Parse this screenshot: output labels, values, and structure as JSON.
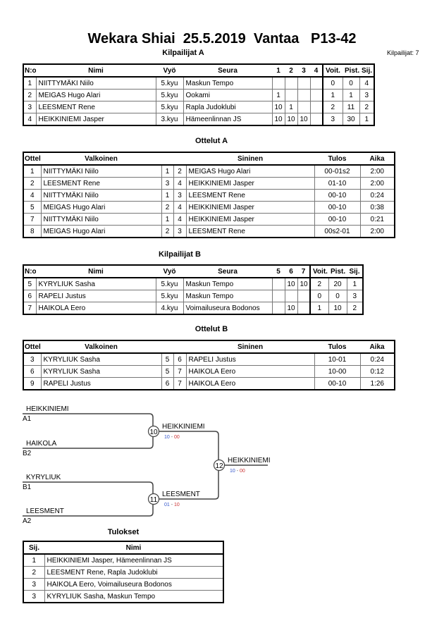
{
  "title": "Wekara Shiai  25.5.2019  Vantaa   P13-42",
  "competitor_count": "Kilpailijat: 7",
  "pool_a": {
    "title": "Kilpailijat A",
    "headers": [
      "N:o",
      "Nimi",
      "Vyö",
      "Seura",
      "1",
      "2",
      "3",
      "4",
      "Voit.",
      "Pist.",
      "Sij."
    ],
    "rows": [
      [
        "1",
        "NIITTYMÄKI Niilo",
        "5.kyu",
        "Maskun Tempo",
        "",
        "",
        "",
        "",
        "0",
        "0",
        "4"
      ],
      [
        "2",
        "MEIGAS Hugo Alari",
        "5.kyu",
        "Ookami",
        "1",
        "",
        "",
        "",
        "1",
        "1",
        "3"
      ],
      [
        "3",
        "LEESMENT Rene",
        "5.kyu",
        "Rapla Judoklubi",
        "10",
        "1",
        "",
        "",
        "2",
        "11",
        "2"
      ],
      [
        "4",
        "HEIKKINIEMI Jasper",
        "3.kyu",
        "Hämeenlinnan JS",
        "10",
        "10",
        "10",
        "",
        "3",
        "30",
        "1"
      ]
    ]
  },
  "matches_a": {
    "title": "Ottelut A",
    "headers": [
      "Ottelu",
      "Valkoinen",
      "",
      "",
      "Sininen",
      "Tulos",
      "Aika"
    ],
    "rows": [
      [
        "1",
        "NIITTYMÄKI Niilo",
        "1",
        "2",
        "MEIGAS Hugo Alari",
        "00-01s2",
        "2:00"
      ],
      [
        "2",
        "LEESMENT Rene",
        "3",
        "4",
        "HEIKKINIEMI Jasper",
        "01-10",
        "2:00"
      ],
      [
        "4",
        "NIITTYMÄKI Niilo",
        "1",
        "3",
        "LEESMENT Rene",
        "00-10",
        "0:24"
      ],
      [
        "5",
        "MEIGAS Hugo Alari",
        "2",
        "4",
        "HEIKKINIEMI Jasper",
        "00-10",
        "0:38"
      ],
      [
        "7",
        "NIITTYMÄKI Niilo",
        "1",
        "4",
        "HEIKKINIEMI Jasper",
        "00-10",
        "0:21"
      ],
      [
        "8",
        "MEIGAS Hugo Alari",
        "2",
        "3",
        "LEESMENT Rene",
        "00s2-01",
        "2:00"
      ]
    ]
  },
  "pool_b": {
    "title": "Kilpailijat B",
    "headers": [
      "N:o",
      "Nimi",
      "Vyö",
      "Seura",
      "5",
      "6",
      "7",
      "Voit.",
      "Pist.",
      "Sij."
    ],
    "rows": [
      [
        "5",
        "KYRYLIUK Sasha",
        "5.kyu",
        "Maskun Tempo",
        "",
        "10",
        "10",
        "2",
        "20",
        "1"
      ],
      [
        "6",
        "RAPELI Justus",
        "5.kyu",
        "Maskun Tempo",
        "",
        "",
        "",
        "0",
        "0",
        "3"
      ],
      [
        "7",
        "HAIKOLA Eero",
        "4.kyu",
        "Voimailuseura Bodonos",
        "",
        "10",
        "",
        "1",
        "10",
        "2"
      ]
    ]
  },
  "matches_b": {
    "title": "Ottelut B",
    "headers": [
      "Ottelu",
      "Valkoinen",
      "",
      "",
      "Sininen",
      "Tulos",
      "Aika"
    ],
    "rows": [
      [
        "3",
        "KYRYLIUK Sasha",
        "5",
        "6",
        "RAPELI Justus",
        "10-01",
        "0:24"
      ],
      [
        "6",
        "KYRYLIUK Sasha",
        "5",
        "7",
        "HAIKOLA Eero",
        "10-00",
        "0:12"
      ],
      [
        "9",
        "RAPELI Justus",
        "6",
        "7",
        "HAIKOLA Eero",
        "00-10",
        "1:26"
      ]
    ]
  },
  "bracket": {
    "entrants": [
      {
        "name": "HEIKKINIEMI",
        "seed": "A1"
      },
      {
        "name": "HAIKOLA",
        "seed": "B2"
      },
      {
        "name": "KYRYLIUK",
        "seed": "B1"
      },
      {
        "name": "LEESMENT",
        "seed": "A2"
      }
    ],
    "matches": [
      {
        "no": "10",
        "winner": "HEIKKINIEMI",
        "score_w": "10",
        "score_b": "00"
      },
      {
        "no": "11",
        "winner": "LEESMENT",
        "score_w": "01",
        "score_b": "10"
      },
      {
        "no": "12",
        "winner": "HEIKKINIEMI",
        "score_w": "10",
        "score_b": "00"
      }
    ],
    "colors": {
      "white_score": "#3355cc",
      "blue_score": "#cc3333"
    }
  },
  "results": {
    "title": "Tulokset",
    "headers": [
      "Sij.",
      "Nimi"
    ],
    "rows": [
      [
        "1",
        "HEIKKINIEMI Jasper, Hämeenlinnan JS"
      ],
      [
        "2",
        "LEESMENT Rene, Rapla Judoklubi"
      ],
      [
        "3",
        "HAIKOLA Eero, Voimailuseura Bodonos"
      ],
      [
        "3",
        "KYRYLIUK Sasha, Maskun Tempo"
      ]
    ]
  }
}
